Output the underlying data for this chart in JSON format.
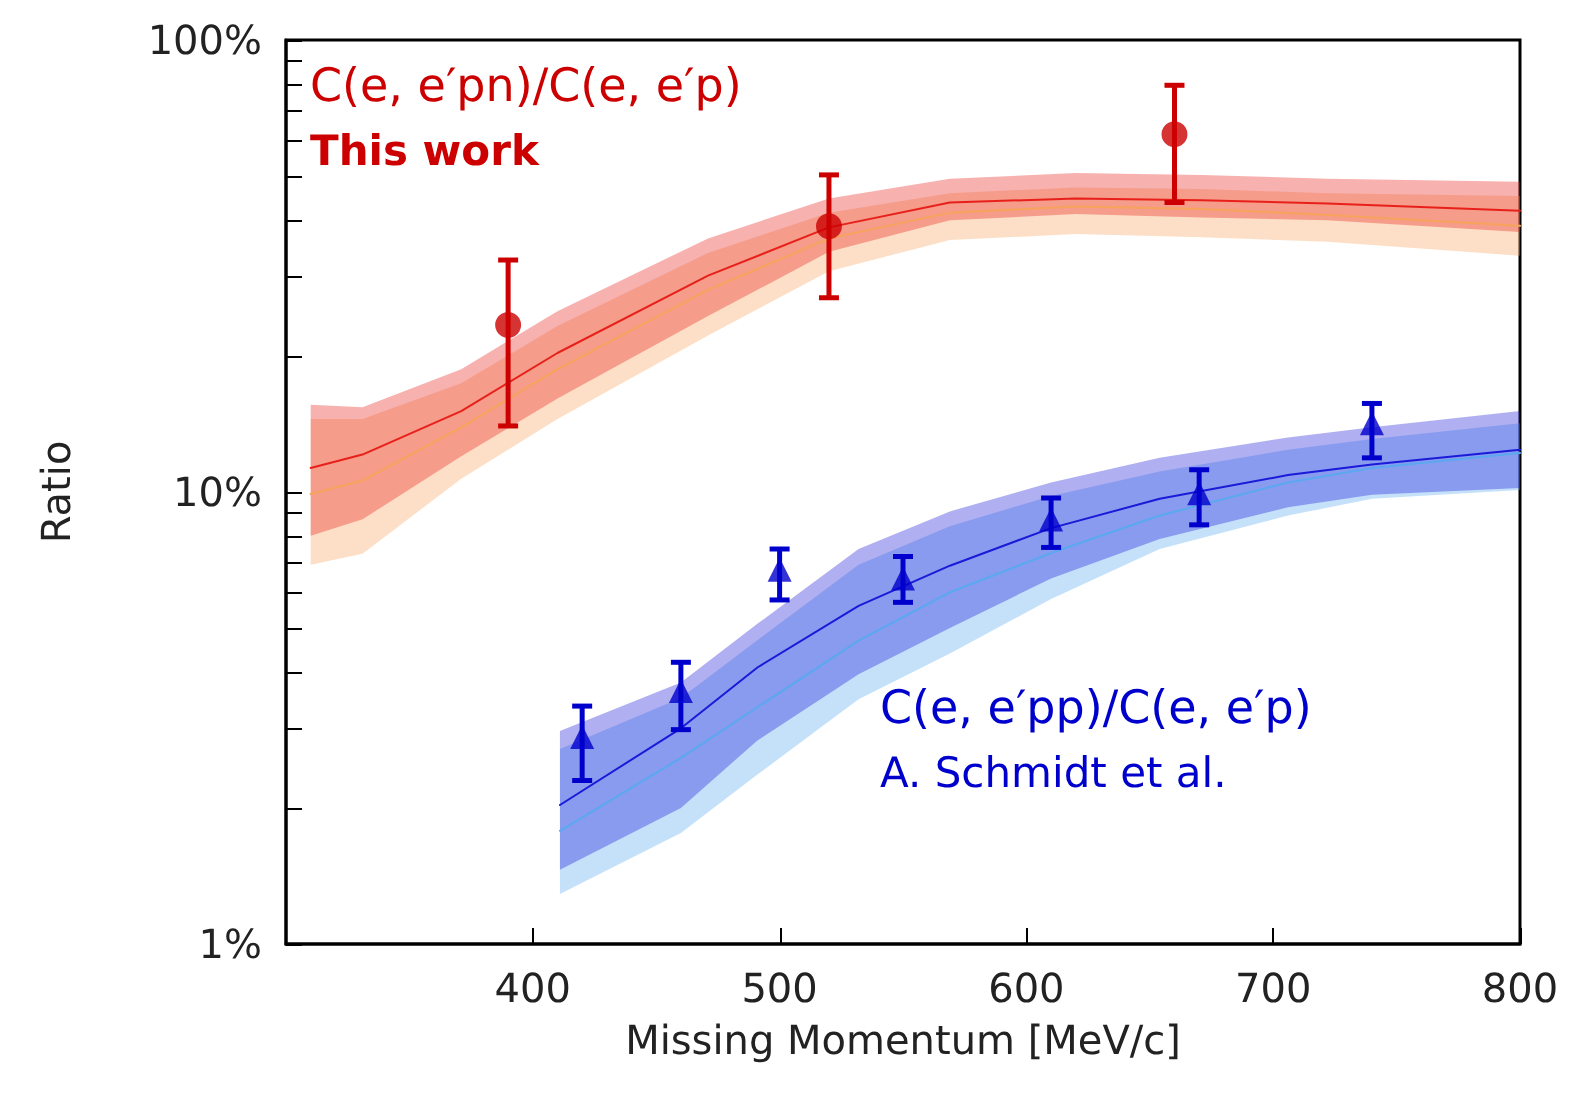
{
  "chart_data": {
    "type": "line",
    "xlabel": "Missing Momentum [MeV/c]",
    "ylabel": "Ratio",
    "log": "y",
    "xlim": [
      300,
      800
    ],
    "xticks": [
      400,
      500,
      600,
      700,
      800
    ],
    "ylim": [
      1,
      100
    ],
    "yticks": [
      {
        "value": 1,
        "label": "1%"
      },
      {
        "value": 2,
        "label": null
      },
      {
        "value": 3,
        "label": null
      },
      {
        "value": 4,
        "label": null
      },
      {
        "value": 5,
        "label": null
      },
      {
        "value": 6,
        "label": null
      },
      {
        "value": 7,
        "label": null
      },
      {
        "value": 8,
        "label": null
      },
      {
        "value": 9,
        "label": null
      },
      {
        "value": 10,
        "label": "10%"
      },
      {
        "value": 20,
        "label": null
      },
      {
        "value": 30,
        "label": null
      },
      {
        "value": 40,
        "label": null
      },
      {
        "value": 50,
        "label": null
      },
      {
        "value": 60,
        "label": null
      },
      {
        "value": 70,
        "label": null
      },
      {
        "value": 80,
        "label": null
      },
      {
        "value": 90,
        "label": null
      },
      {
        "value": 100,
        "label": "100%"
      }
    ],
    "grid": false,
    "legend": false,
    "annotations": [
      "This work",
      "A. Schmidt et al."
    ],
    "series": [
      {
        "color": "#f7a35c",
        "x": [
          310,
          331,
          371,
          410,
          471,
          520,
          569,
          620,
          671,
          722,
          800
        ],
        "values": [
          9.9,
          10.6,
          13.9,
          18.7,
          28.0,
          36.4,
          41.5,
          42.8,
          42.3,
          41.0,
          38.8
        ],
        "lower": [
          6.9,
          7.3,
          10.7,
          14.5,
          22.2,
          30.8,
          36.1,
          37.2,
          36.6,
          35.8,
          33.3
        ],
        "upper": [
          14.5,
          14.5,
          17.4,
          23.3,
          33.8,
          41.5,
          45.8,
          47.2,
          46.8,
          45.8,
          45.2
        ]
      },
      {
        "color": "#e8201a",
        "x": [
          310,
          331,
          371,
          410,
          471,
          520,
          569,
          620,
          671,
          722,
          800
        ],
        "values": [
          11.3,
          12.1,
          15.1,
          20.3,
          30.1,
          38.5,
          43.7,
          44.6,
          44.2,
          43.5,
          41.9
        ],
        "lower": [
          8.0,
          8.7,
          12.0,
          16.1,
          24.5,
          34.0,
          39.9,
          41.2,
          40.5,
          39.9,
          37.6
        ],
        "upper": [
          15.6,
          15.4,
          18.7,
          25.1,
          36.4,
          44.6,
          49.3,
          50.8,
          50.3,
          49.3,
          48.6
        ]
      },
      {
        "color": "#5aa8f0",
        "x": [
          411,
          460,
          491,
          532,
          569,
          610,
          654,
          706,
          740,
          800
        ],
        "values": [
          1.78,
          2.58,
          3.34,
          4.69,
          6.0,
          7.33,
          8.87,
          10.5,
          11.3,
          12.2
        ],
        "lower": [
          1.29,
          1.76,
          2.37,
          3.48,
          4.39,
          5.8,
          7.48,
          8.87,
          9.66,
          10.1
        ],
        "upper": [
          2.7,
          3.5,
          4.7,
          6.9,
          8.4,
          9.8,
          11.1,
          12.4,
          13.1,
          14.2
        ]
      },
      {
        "color": "#1a1ad8",
        "x": [
          411,
          460,
          491,
          532,
          569,
          610,
          654,
          706,
          740,
          800
        ],
        "values": [
          2.03,
          3.0,
          4.09,
          5.6,
          6.87,
          8.32,
          9.66,
          10.9,
          11.5,
          12.4
        ],
        "lower": [
          1.46,
          2.0,
          2.82,
          3.95,
          5.0,
          6.44,
          7.87,
          9.25,
          9.86,
          10.2
        ],
        "upper": [
          2.96,
          3.79,
          5.11,
          7.48,
          9.06,
          10.5,
          11.9,
          13.2,
          13.9,
          15.1
        ]
      },
      {
        "type": "scatter",
        "name": "C(e, e′pn)/C(e, e′p)",
        "color": "#cc0000",
        "marker": "circle",
        "x": [
          390,
          520,
          660
        ],
        "values": [
          23.4,
          38.7,
          61.9
        ],
        "errors": [
          [
            14.0,
            32.6
          ],
          [
            26.9,
            50.3
          ],
          [
            43.7,
            79.4
          ]
        ]
      },
      {
        "type": "scatter",
        "name": "C(e, e′pp)/C(e, e′p)",
        "color": "#0000cc",
        "marker": "triangle",
        "x": [
          420,
          460,
          500,
          550,
          610,
          670,
          740
        ],
        "values": [
          2.87,
          3.63,
          6.73,
          6.44,
          8.69,
          9.94,
          14.2
        ],
        "errors": [
          [
            2.3,
            3.36
          ],
          [
            2.98,
            4.2
          ],
          [
            5.77,
            7.48
          ],
          [
            5.7,
            7.2
          ],
          [
            7.54,
            9.7
          ],
          [
            8.46,
            11.2
          ],
          [
            11.9,
            15.7
          ]
        ]
      }
    ]
  }
}
